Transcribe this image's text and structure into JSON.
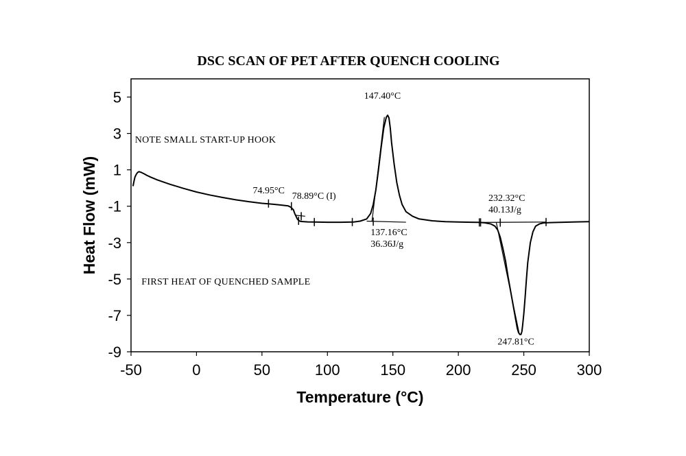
{
  "chart_data": {
    "type": "line",
    "title": "DSC SCAN OF PET AFTER QUENCH COOLING",
    "xlabel": "Temperature (°C)",
    "ylabel": "Heat Flow (mW)",
    "xlim": [
      -50,
      300
    ],
    "ylim": [
      -9,
      6
    ],
    "xticks": [
      -50,
      0,
      50,
      100,
      150,
      200,
      250,
      300
    ],
    "yticks": [
      -9,
      -7,
      -5,
      -3,
      -1,
      1,
      3,
      5
    ],
    "grid": false,
    "notes": [
      {
        "text": "NOTE  SMALL  START-UP  HOOK",
        "x": -47,
        "y": 2.5
      },
      {
        "text": "FIRST  HEAT  OF  QUENCHED  SAMPLE",
        "x": -42,
        "y": -5.3
      }
    ],
    "annotations": [
      {
        "lines": [
          "147.40°C"
        ],
        "x": 128,
        "y": 4.9
      },
      {
        "lines": [
          "74.95°C"
        ],
        "x": 43,
        "y": -0.3
      },
      {
        "lines": [
          "78.89°C  (I)"
        ],
        "x": 73,
        "y": -0.6
      },
      {
        "lines": [
          "137.16°C",
          "36.36J/g"
        ],
        "x": 133,
        "y": -2.6
      },
      {
        "lines": [
          "232.32°C",
          "40.13J/g"
        ],
        "x": 223,
        "y": -0.7
      },
      {
        "lines": [
          "247.81°C"
        ],
        "x": 230,
        "y": -8.6
      }
    ],
    "series": [
      {
        "x": [
          -48.5,
          -47.8,
          -47,
          -46,
          -45,
          -44,
          -43,
          -42,
          -40,
          -38,
          -35,
          -30,
          -20,
          -10,
          0,
          10,
          20,
          30,
          40,
          50,
          55,
          60,
          65,
          70,
          72,
          74,
          75,
          76,
          77,
          78,
          79,
          80,
          85,
          90,
          100,
          110,
          120,
          125,
          130,
          133,
          135,
          137,
          139,
          141,
          143,
          145,
          146,
          147,
          148,
          149,
          151,
          153,
          155,
          157,
          160,
          165,
          170,
          180,
          190,
          200,
          210,
          215,
          220,
          225,
          228,
          230,
          232,
          234,
          236,
          238,
          240,
          242,
          244,
          245,
          246,
          247,
          247.8,
          248.5,
          249,
          250,
          251,
          252,
          253,
          255,
          257,
          259,
          262,
          265,
          270,
          280,
          290,
          300
        ],
        "y": [
          0.1,
          0.35,
          0.6,
          0.75,
          0.85,
          0.9,
          0.88,
          0.85,
          0.78,
          0.7,
          0.6,
          0.45,
          0.2,
          -0.02,
          -0.22,
          -0.38,
          -0.52,
          -0.65,
          -0.75,
          -0.84,
          -0.87,
          -0.9,
          -0.94,
          -0.98,
          -1.05,
          -1.2,
          -1.4,
          -1.55,
          -1.7,
          -1.78,
          -1.82,
          -1.84,
          -1.86,
          -1.87,
          -1.88,
          -1.88,
          -1.87,
          -1.82,
          -1.7,
          -1.4,
          -0.9,
          -0.1,
          1.0,
          2.2,
          3.3,
          3.9,
          4.0,
          3.85,
          3.3,
          2.5,
          1.3,
          0.3,
          -0.4,
          -0.9,
          -1.3,
          -1.55,
          -1.7,
          -1.8,
          -1.85,
          -1.87,
          -1.88,
          -1.89,
          -1.91,
          -1.98,
          -2.1,
          -2.3,
          -2.7,
          -3.3,
          -4.0,
          -4.9,
          -5.7,
          -6.5,
          -7.3,
          -7.7,
          -7.95,
          -8.05,
          -8.05,
          -7.9,
          -7.6,
          -6.9,
          -6.0,
          -5.0,
          -4.1,
          -3.0,
          -2.4,
          -2.1,
          -1.97,
          -1.92,
          -1.9,
          -1.88,
          -1.86,
          -1.85
        ]
      }
    ],
    "baselines": [
      {
        "x": [
          76,
          83
        ],
        "y": [
          -1.5,
          -1.55
        ]
      },
      {
        "x": [
          130,
          160
        ],
        "y": [
          -1.82,
          -1.88
        ]
      },
      {
        "x": [
          216,
          267
        ],
        "y": [
          -1.89,
          -1.87
        ]
      }
    ],
    "tangents": [
      {
        "x": [
          134,
          143.5
        ],
        "y": [
          -1.85,
          3.9
        ]
      },
      {
        "x": [
          229,
          246.5
        ],
        "y": [
          -1.9,
          -8.0
        ]
      }
    ],
    "tick_marks": [
      {
        "x": 55,
        "y": -0.85
      },
      {
        "x": 72.5,
        "y": -1.0
      },
      {
        "x": 78,
        "y": -1.8
      },
      {
        "x": 80,
        "y": -1.55
      },
      {
        "x": 90,
        "y": -1.87
      },
      {
        "x": 119,
        "y": -1.87
      },
      {
        "x": 135,
        "y": -1.85
      },
      {
        "x": 216,
        "y": -1.89
      },
      {
        "x": 217,
        "y": -1.89
      },
      {
        "x": 232,
        "y": -1.9
      },
      {
        "x": 267,
        "y": -1.87
      }
    ]
  }
}
